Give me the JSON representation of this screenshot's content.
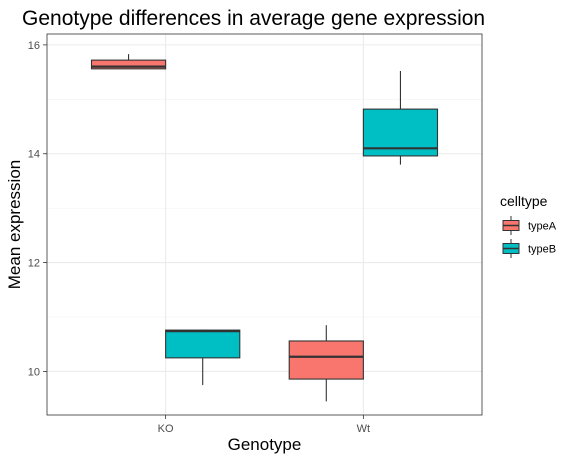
{
  "chart_data": {
    "type": "boxplot",
    "title": "Genotype differences in average gene expression",
    "xlabel": "Genotype",
    "ylabel": "Mean expression",
    "categories": [
      "KO",
      "Wt"
    ],
    "ylim": [
      9.2,
      16.2
    ],
    "yticks": [
      10,
      12,
      14,
      16
    ],
    "grid": true,
    "legend": {
      "title": "celltype",
      "placement": "right"
    },
    "series": [
      {
        "name": "typeA",
        "color": "#F8766D",
        "boxes": [
          {
            "category": "KO",
            "min": 15.56,
            "q1": 15.56,
            "median": 15.6,
            "q3": 15.72,
            "max": 15.83
          },
          {
            "category": "Wt",
            "min": 9.45,
            "q1": 9.86,
            "median": 10.27,
            "q3": 10.56,
            "max": 10.85
          }
        ]
      },
      {
        "name": "typeB",
        "color": "#00BFC4",
        "boxes": [
          {
            "category": "KO",
            "min": 9.75,
            "q1": 10.25,
            "median": 10.74,
            "q3": 10.76,
            "max": 10.77
          },
          {
            "category": "Wt",
            "min": 13.8,
            "q1": 13.96,
            "median": 14.1,
            "q3": 14.82,
            "max": 15.52
          }
        ]
      }
    ]
  }
}
